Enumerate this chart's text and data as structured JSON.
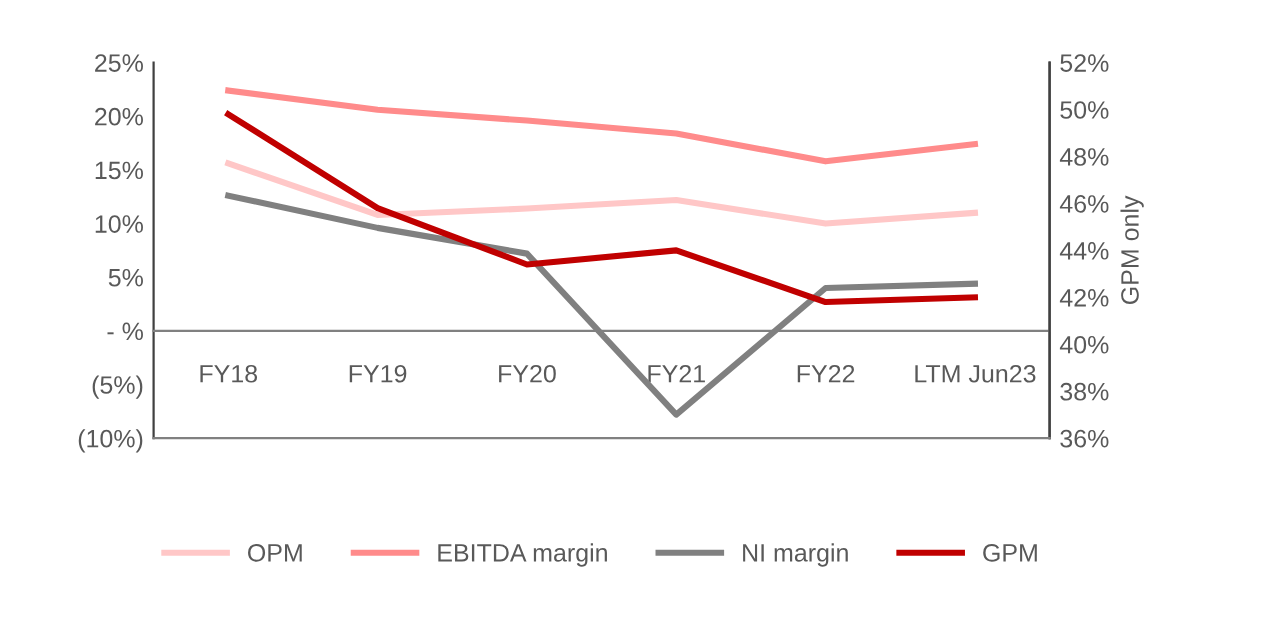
{
  "chart_data": {
    "type": "line",
    "categories": [
      "FY18",
      "FY19",
      "FY20",
      "FY21",
      "FY22",
      "LTM Jun23"
    ],
    "y2label": "GPM only",
    "ylim": [
      -10,
      25
    ],
    "yticks": [
      {
        "value": -10,
        "label": "(10%)"
      },
      {
        "value": -5,
        "label": "(5%)"
      },
      {
        "value": 0,
        "label": "- %"
      },
      {
        "value": 5,
        "label": "5%"
      },
      {
        "value": 10,
        "label": "10%"
      },
      {
        "value": 15,
        "label": "15%"
      },
      {
        "value": 20,
        "label": "20%"
      },
      {
        "value": 25,
        "label": "25%"
      }
    ],
    "y2lim": [
      36,
      52
    ],
    "y2ticks": [
      {
        "value": 36,
        "label": "36%"
      },
      {
        "value": 38,
        "label": "38%"
      },
      {
        "value": 40,
        "label": "40%"
      },
      {
        "value": 42,
        "label": "42%"
      },
      {
        "value": 44,
        "label": "44%"
      },
      {
        "value": 46,
        "label": "46%"
      },
      {
        "value": 48,
        "label": "48%"
      },
      {
        "value": 50,
        "label": "50%"
      },
      {
        "value": 52,
        "label": "52%"
      }
    ],
    "series": [
      {
        "name": "OPM",
        "color": "#ffc7c7",
        "values": [
          15.6,
          10.8,
          11.4,
          12.2,
          10.0,
          11.0
        ]
      },
      {
        "name": "EBITDA margin",
        "color": "#ff8b8b",
        "values": [
          22.4,
          20.6,
          19.6,
          18.4,
          15.8,
          17.4
        ]
      },
      {
        "name": "NI margin",
        "color": "#808080",
        "values": [
          12.6,
          9.6,
          7.2,
          -7.8,
          4.0,
          4.4
        ]
      },
      {
        "name": "GPM",
        "color": "#c00000",
        "axis": "y2",
        "values": [
          49.8,
          45.8,
          43.4,
          44.0,
          41.8,
          42.0
        ]
      }
    ],
    "legend": "bottom",
    "grid": false,
    "marker": "none",
    "line_style": "solid"
  }
}
